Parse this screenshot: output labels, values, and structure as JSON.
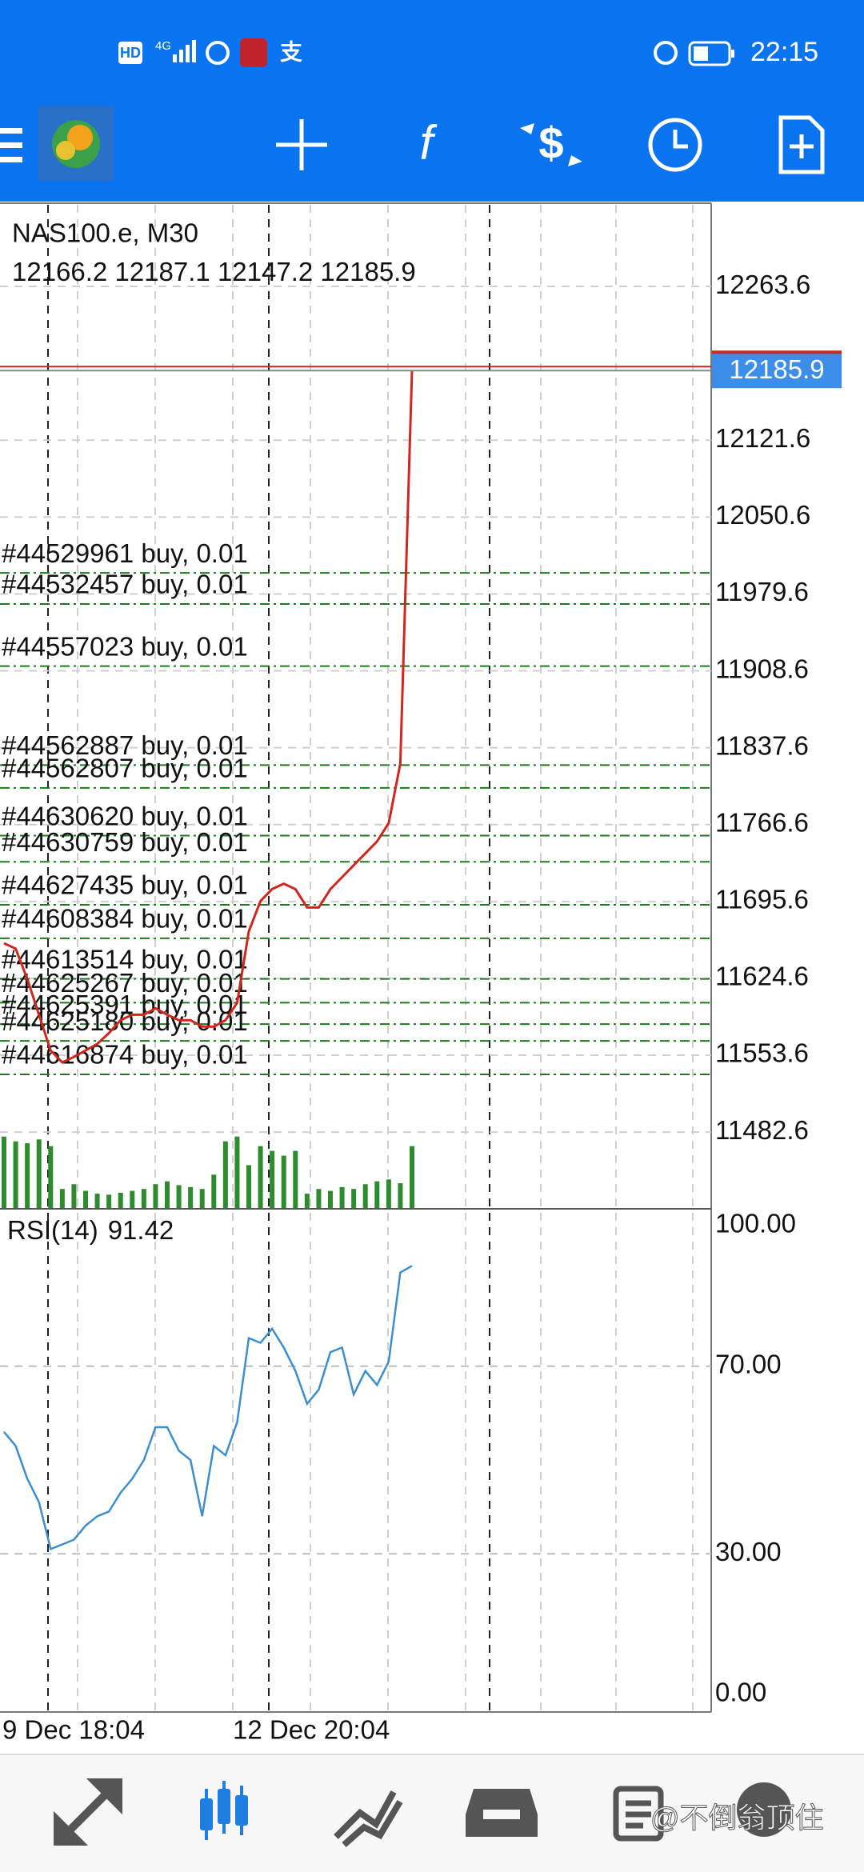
{
  "status_bar": {
    "network": [
      "HD",
      "4G"
    ],
    "time": "22:15"
  },
  "chart": {
    "symbol": "NAS100.e, M30",
    "ohlc": [
      12166.2,
      12187.1,
      12147.2,
      12185.9
    ],
    "ylim": [
      11412.5,
      12339.0
    ],
    "yticks": [
      12263.6,
      12121.6,
      12050.6,
      11979.6,
      11908.6,
      11837.6,
      11766.6,
      11695.6,
      11624.6,
      11553.6,
      11482.6
    ],
    "last_price": 12185.9,
    "price_values": [
      11657,
      11652,
      11624,
      11591,
      11558,
      11547,
      11552,
      11558,
      11564,
      11574,
      11586,
      11591,
      11591,
      11597,
      11591,
      11586,
      11586,
      11580,
      11580,
      11586,
      11602,
      11668,
      11696,
      11707,
      11712,
      11707,
      11690,
      11690,
      11707,
      11718,
      11729,
      11740,
      11751,
      11768,
      11823,
      12185.9
    ],
    "price_color": "#d0261d",
    "volume_lim": [
      0,
      100
    ],
    "volume_values": [
      75,
      70,
      68,
      72,
      65,
      20,
      25,
      18,
      15,
      14,
      16,
      18,
      20,
      25,
      28,
      24,
      22,
      20,
      35,
      70,
      75,
      45,
      65,
      60,
      55,
      60,
      15,
      20,
      18,
      22,
      20,
      25,
      28,
      30,
      26,
      65
    ],
    "volume_color": "#2e8b2e",
    "orders": [
      {
        "label": "#44529961 buy, 0.01",
        "price": 11999.0
      },
      {
        "label": "#44532457 buy, 0.01",
        "price": 11970.3
      },
      {
        "label": "#44557023 buy, 0.01",
        "price": 11913.0
      },
      {
        "label": "#44562887 buy, 0.01",
        "price": 11821.5
      },
      {
        "label": "#44562807 buy, 0.01",
        "price": 11800.5
      },
      {
        "label": "#44630620 buy, 0.01",
        "price": 11756.4
      },
      {
        "label": "#44630759 buy, 0.01",
        "price": 11732.2
      },
      {
        "label": "#44627435 buy, 0.01",
        "price": 11692.5
      },
      {
        "label": "#44608384 buy, 0.01",
        "price": 11661.6
      },
      {
        "label": "#44613514 buy, 0.01",
        "price": 11624.1
      },
      {
        "label": "#44625267 buy, 0.01",
        "price": 11602.1
      },
      {
        "label": "#44625391 buy, 0.01",
        "price": 11582.3
      },
      {
        "label": "#44625180 buy, 0.01",
        "price": 11566.8
      },
      {
        "label": "#44616874 buy, 0.01",
        "price": 11535.9
      }
    ]
  },
  "rsi": {
    "name": "RSI(14)",
    "ylim": [
      0,
      100
    ],
    "yticks": [
      {
        "value": 100,
        "label": "100.00"
      },
      {
        "value": 70,
        "label": "70.00"
      },
      {
        "value": 30,
        "label": "30.00"
      },
      {
        "value": 0,
        "label": "0.00"
      }
    ],
    "values": [
      56,
      53,
      46,
      41,
      31,
      32,
      33,
      36,
      38,
      39,
      43,
      46,
      50,
      57,
      57,
      52,
      50,
      38,
      53,
      51,
      58,
      76,
      75,
      78,
      74,
      69,
      62,
      65,
      73,
      74,
      64,
      69,
      66,
      71,
      90,
      91.42
    ],
    "color": "#3d8ed0"
  },
  "x_labels": [
    "9 Dec 18:04",
    "12 Dec 20:04"
  ],
  "watermark": "@不倒翁顶住"
}
